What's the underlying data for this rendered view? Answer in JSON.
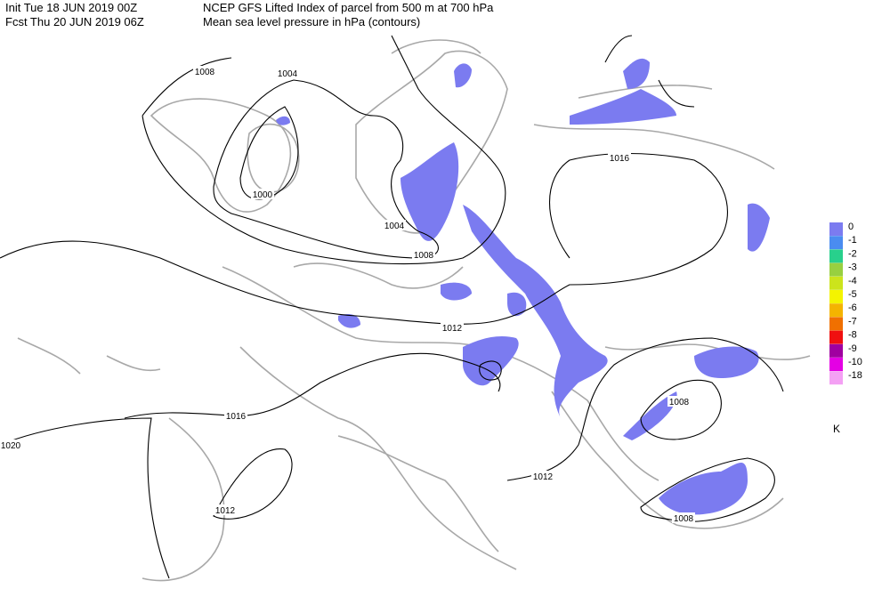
{
  "header": {
    "line1_left": "Init   Tue 18 JUN 2019 00Z",
    "line1_right": "NCEP GFS Lifted Index of parcel from 500 m at 700 hPa",
    "line2_left": "Fcst Thu 20 JUN 2019 06Z",
    "line2_right": "Mean sea level pressure in hPa (contours)"
  },
  "contour_labels": [
    "1008",
    "1004",
    "1000",
    "1004",
    "1008",
    "1012",
    "1016",
    "1016",
    "1020",
    "1012",
    "1012",
    "1008",
    "1008"
  ],
  "legend": {
    "unit": "K",
    "items": [
      {
        "label": "0",
        "color": "#7b7bf0"
      },
      {
        "label": "-1",
        "color": "#4a8cf0"
      },
      {
        "label": "-2",
        "color": "#28d08c"
      },
      {
        "label": "-3",
        "color": "#98d040"
      },
      {
        "label": "-4",
        "color": "#cce41c"
      },
      {
        "label": "-5",
        "color": "#f4f400"
      },
      {
        "label": "-6",
        "color": "#f4b400"
      },
      {
        "label": "-7",
        "color": "#f07000"
      },
      {
        "label": "-8",
        "color": "#f01010"
      },
      {
        "label": "-9",
        "color": "#a000a0"
      },
      {
        "label": "-10",
        "color": "#e400e4"
      },
      {
        "label": "-18",
        "color": "#f4a0f4"
      }
    ]
  }
}
